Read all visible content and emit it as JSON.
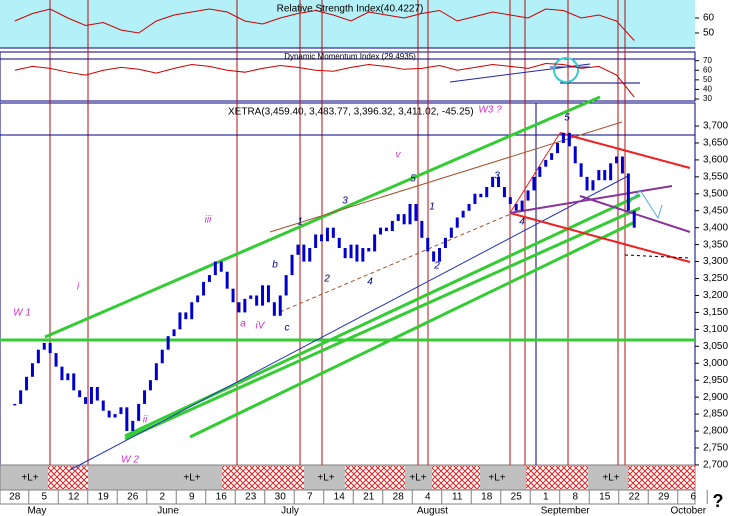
{
  "chart_data": [
    {
      "type": "line",
      "title": "Relative Strength Index(40.4227)",
      "color": "#cc0000",
      "background": "#b3f0f7",
      "x": [
        0,
        3,
        6,
        9,
        12,
        15,
        18,
        21,
        24,
        27,
        30,
        33,
        36,
        39,
        42,
        45,
        48,
        51,
        54,
        57,
        60,
        63,
        66,
        69,
        72,
        75,
        78,
        81,
        84,
        87,
        90,
        93,
        96,
        99,
        102,
        105
      ],
      "values": [
        58,
        63,
        66,
        60,
        55,
        57,
        52,
        50,
        58,
        62,
        64,
        66,
        64,
        58,
        56,
        60,
        63,
        65,
        62,
        58,
        64,
        62,
        60,
        63,
        65,
        58,
        61,
        64,
        62,
        60,
        66,
        65,
        60,
        62,
        58,
        45
      ],
      "xlim": [
        -2.5,
        115.3
      ],
      "ylim": [
        40,
        70
      ],
      "yticks": [
        50,
        60
      ]
    },
    {
      "type": "line",
      "title": "Dynamic Momentum Index (29.4935)",
      "color": "#cc0000",
      "x": [
        0,
        3,
        6,
        9,
        12,
        15,
        18,
        21,
        24,
        27,
        30,
        33,
        36,
        39,
        42,
        45,
        48,
        51,
        54,
        57,
        60,
        63,
        66,
        69,
        72,
        75,
        78,
        81,
        84,
        87,
        90,
        93,
        96,
        99,
        102,
        105
      ],
      "values": [
        60,
        64,
        62,
        58,
        55,
        60,
        63,
        61,
        57,
        62,
        66,
        64,
        60,
        58,
        62,
        65,
        63,
        60,
        59,
        63,
        66,
        64,
        61,
        62,
        65,
        60,
        63,
        66,
        64,
        62,
        67,
        66,
        62,
        64,
        55,
        32
      ],
      "xlim": [
        -2.5,
        115.3
      ],
      "ylim": [
        29,
        78
      ],
      "yticks": [
        30,
        40,
        50,
        60,
        70
      ]
    },
    {
      "type": "candlestick",
      "title": "XETRA(3,459.40, 3,483.77, 3,396.32, 3,411.02, -45.25)",
      "color": "#0000cc",
      "x": [
        0,
        1,
        2,
        3,
        4,
        5,
        6,
        7,
        8,
        9,
        10,
        11,
        12,
        13,
        14,
        15,
        16,
        17,
        18,
        19,
        20,
        21,
        22,
        23,
        24,
        25,
        26,
        27,
        28,
        29,
        30,
        31,
        32,
        33,
        34,
        35,
        36,
        37,
        38,
        39,
        40,
        41,
        42,
        43,
        44,
        45,
        46,
        47,
        48,
        49,
        50,
        51,
        52,
        53,
        54,
        55,
        56,
        57,
        58,
        59,
        60,
        61,
        62,
        63,
        64,
        65,
        66,
        67,
        68,
        69,
        70,
        71,
        72,
        73,
        74,
        75,
        76,
        77,
        78,
        79,
        80,
        81,
        82,
        83,
        84,
        85,
        86,
        87,
        88,
        89,
        90,
        91,
        92,
        93,
        94,
        95,
        96,
        97,
        98,
        99,
        100,
        101,
        102,
        103,
        104,
        105
      ],
      "values": [
        2880,
        2920,
        2960,
        3000,
        3040,
        3060,
        3030,
        2990,
        2950,
        2970,
        2920,
        2900,
        2880,
        2930,
        2890,
        2860,
        2840,
        2850,
        2870,
        2800,
        2830,
        2880,
        2920,
        2950,
        3000,
        3040,
        3080,
        3100,
        3150,
        3130,
        3180,
        3200,
        3240,
        3260,
        3300,
        3270,
        3220,
        3180,
        3150,
        3190,
        3200,
        3170,
        3230,
        3180,
        3140,
        3200,
        3260,
        3320,
        3350,
        3300,
        3340,
        3380,
        3360,
        3400,
        3370,
        3340,
        3310,
        3350,
        3300,
        3340,
        3330,
        3380,
        3400,
        3390,
        3420,
        3440,
        3410,
        3470,
        3420,
        3370,
        3330,
        3300,
        3340,
        3370,
        3400,
        3430,
        3450,
        3470,
        3500,
        3490,
        3520,
        3550,
        3520,
        3490,
        3470,
        3450,
        3480,
        3510,
        3550,
        3580,
        3600,
        3620,
        3650,
        3680,
        3640,
        3590,
        3550,
        3510,
        3540,
        3570,
        3540,
        3590,
        3610,
        3560,
        3450,
        3400
      ],
      "xlim": [
        -2.5,
        115.3
      ],
      "ylim": [
        2685,
        3762
      ],
      "yticks": [
        {
          "value": 2700,
          "label": "2,700"
        },
        {
          "value": 2750,
          "label": "2,750"
        },
        {
          "value": 2800,
          "label": "2,800"
        },
        {
          "value": 2850,
          "label": "2,850"
        },
        {
          "value": 2900,
          "label": "2,900"
        },
        {
          "value": 2950,
          "label": "2,950"
        },
        {
          "value": 3000,
          "label": "3,000"
        },
        {
          "value": 3050,
          "label": "3,050"
        },
        {
          "value": 3100,
          "label": "3,100"
        },
        {
          "value": 3150,
          "label": "3,150"
        },
        {
          "value": 3200,
          "label": "3,200"
        },
        {
          "value": 3250,
          "label": "3,250"
        },
        {
          "value": 3300,
          "label": "3,300"
        },
        {
          "value": 3350,
          "label": "3,350"
        },
        {
          "value": 3400,
          "label": "3,400"
        },
        {
          "value": 3450,
          "label": "3,450"
        },
        {
          "value": 3500,
          "label": "3,500"
        },
        {
          "value": 3550,
          "label": "3,550"
        },
        {
          "value": 3600,
          "label": "3,600"
        },
        {
          "value": 3650,
          "label": "3,650"
        },
        {
          "value": 3700,
          "label": "3,700"
        }
      ],
      "xticks": [
        {
          "value": 0,
          "label": "28"
        },
        {
          "value": 5,
          "label": "5"
        },
        {
          "value": 10,
          "label": "12"
        },
        {
          "value": 15,
          "label": "19"
        },
        {
          "value": 20,
          "label": "26"
        },
        {
          "value": 25,
          "label": "2"
        },
        {
          "value": 30,
          "label": "9"
        },
        {
          "value": 35,
          "label": "16"
        },
        {
          "value": 40,
          "label": "23"
        },
        {
          "value": 45,
          "label": "30"
        },
        {
          "value": 50,
          "label": "7"
        },
        {
          "value": 55,
          "label": "14"
        },
        {
          "value": 60,
          "label": "21"
        },
        {
          "value": 65,
          "label": "28"
        },
        {
          "value": 70,
          "label": "4"
        },
        {
          "value": 75,
          "label": "11"
        },
        {
          "value": 80,
          "label": "18"
        },
        {
          "value": 85,
          "label": "25"
        },
        {
          "value": 90,
          "label": "1"
        },
        {
          "value": 95,
          "label": "8"
        },
        {
          "value": 100,
          "label": "15"
        },
        {
          "value": 105,
          "label": "22"
        },
        {
          "value": 110,
          "label": "29"
        },
        {
          "value": 115,
          "label": "6"
        }
      ],
      "months": [
        {
          "value": 3,
          "label": "May"
        },
        {
          "value": 25,
          "label": "June"
        },
        {
          "value": 46,
          "label": "July"
        },
        {
          "value": 69,
          "label": "August"
        },
        {
          "value": 90,
          "label": "September"
        },
        {
          "value": 112,
          "label": "October"
        }
      ],
      "annotations": [
        {
          "text": "W 1",
          "color": "#cc33cc"
        },
        {
          "text": "i",
          "color": "#cc33cc"
        },
        {
          "text": "ii",
          "color": "#cc33cc"
        },
        {
          "text": "W 2",
          "color": "#cc33cc"
        },
        {
          "text": "iii",
          "color": "#cc33cc"
        },
        {
          "text": "a",
          "color": "#cc33cc"
        },
        {
          "text": "iV",
          "color": "#cc33cc"
        },
        {
          "text": "b",
          "color": "#000080"
        },
        {
          "text": "c",
          "color": "#000080"
        },
        {
          "text": "v",
          "color": "#cc33cc"
        },
        {
          "text": "1",
          "color": "#000080"
        },
        {
          "text": "3",
          "color": "#000080"
        },
        {
          "text": "2",
          "color": "#000080"
        },
        {
          "text": "4",
          "color": "#000080"
        },
        {
          "text": "5",
          "color": "#000080"
        },
        {
          "text": "1",
          "color": "#000080"
        },
        {
          "text": "2",
          "color": "#000080"
        },
        {
          "text": "3",
          "color": "#000080"
        },
        {
          "text": "4",
          "color": "#000080"
        },
        {
          "text": "5",
          "color": "#000080"
        },
        {
          "text": "W3 ?",
          "color": "#cc33cc"
        }
      ],
      "strip_labels": [
        "+L+",
        "+L+",
        "+L+",
        "+L+",
        "+L+",
        "+L+"
      ]
    }
  ],
  "help": "?"
}
